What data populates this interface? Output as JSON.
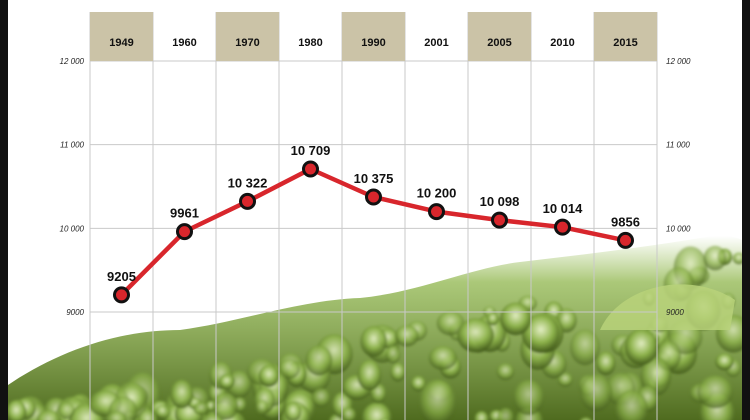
{
  "chart_data": {
    "type": "line",
    "categories": [
      "1949",
      "1960",
      "1970",
      "1980",
      "1990",
      "2001",
      "2005",
      "2010",
      "2015"
    ],
    "values": [
      9205,
      9961,
      10322,
      10709,
      10375,
      10200,
      10098,
      10014,
      9856
    ],
    "value_labels": [
      "9205",
      "9961",
      "10 322",
      "10 709",
      "10 375",
      "10 200",
      "10 098",
      "10 014",
      "9856"
    ],
    "y_ticks": [
      9000,
      10000,
      11000,
      12000
    ],
    "y_tick_labels": [
      "9000",
      "10 000",
      "11 000",
      "12 000"
    ],
    "ylim": [
      8700,
      12000
    ],
    "grid": true,
    "shaded_header_columns": [
      0,
      2,
      4,
      6,
      8
    ],
    "colors": {
      "line": "#d8262c",
      "marker_fill": "#d8262c",
      "marker_stroke": "#111111",
      "header_shaded": "#cbc3a7",
      "grid": "#c9c9c9",
      "frame": "#111111",
      "photo_green": "#7ea53d"
    }
  }
}
